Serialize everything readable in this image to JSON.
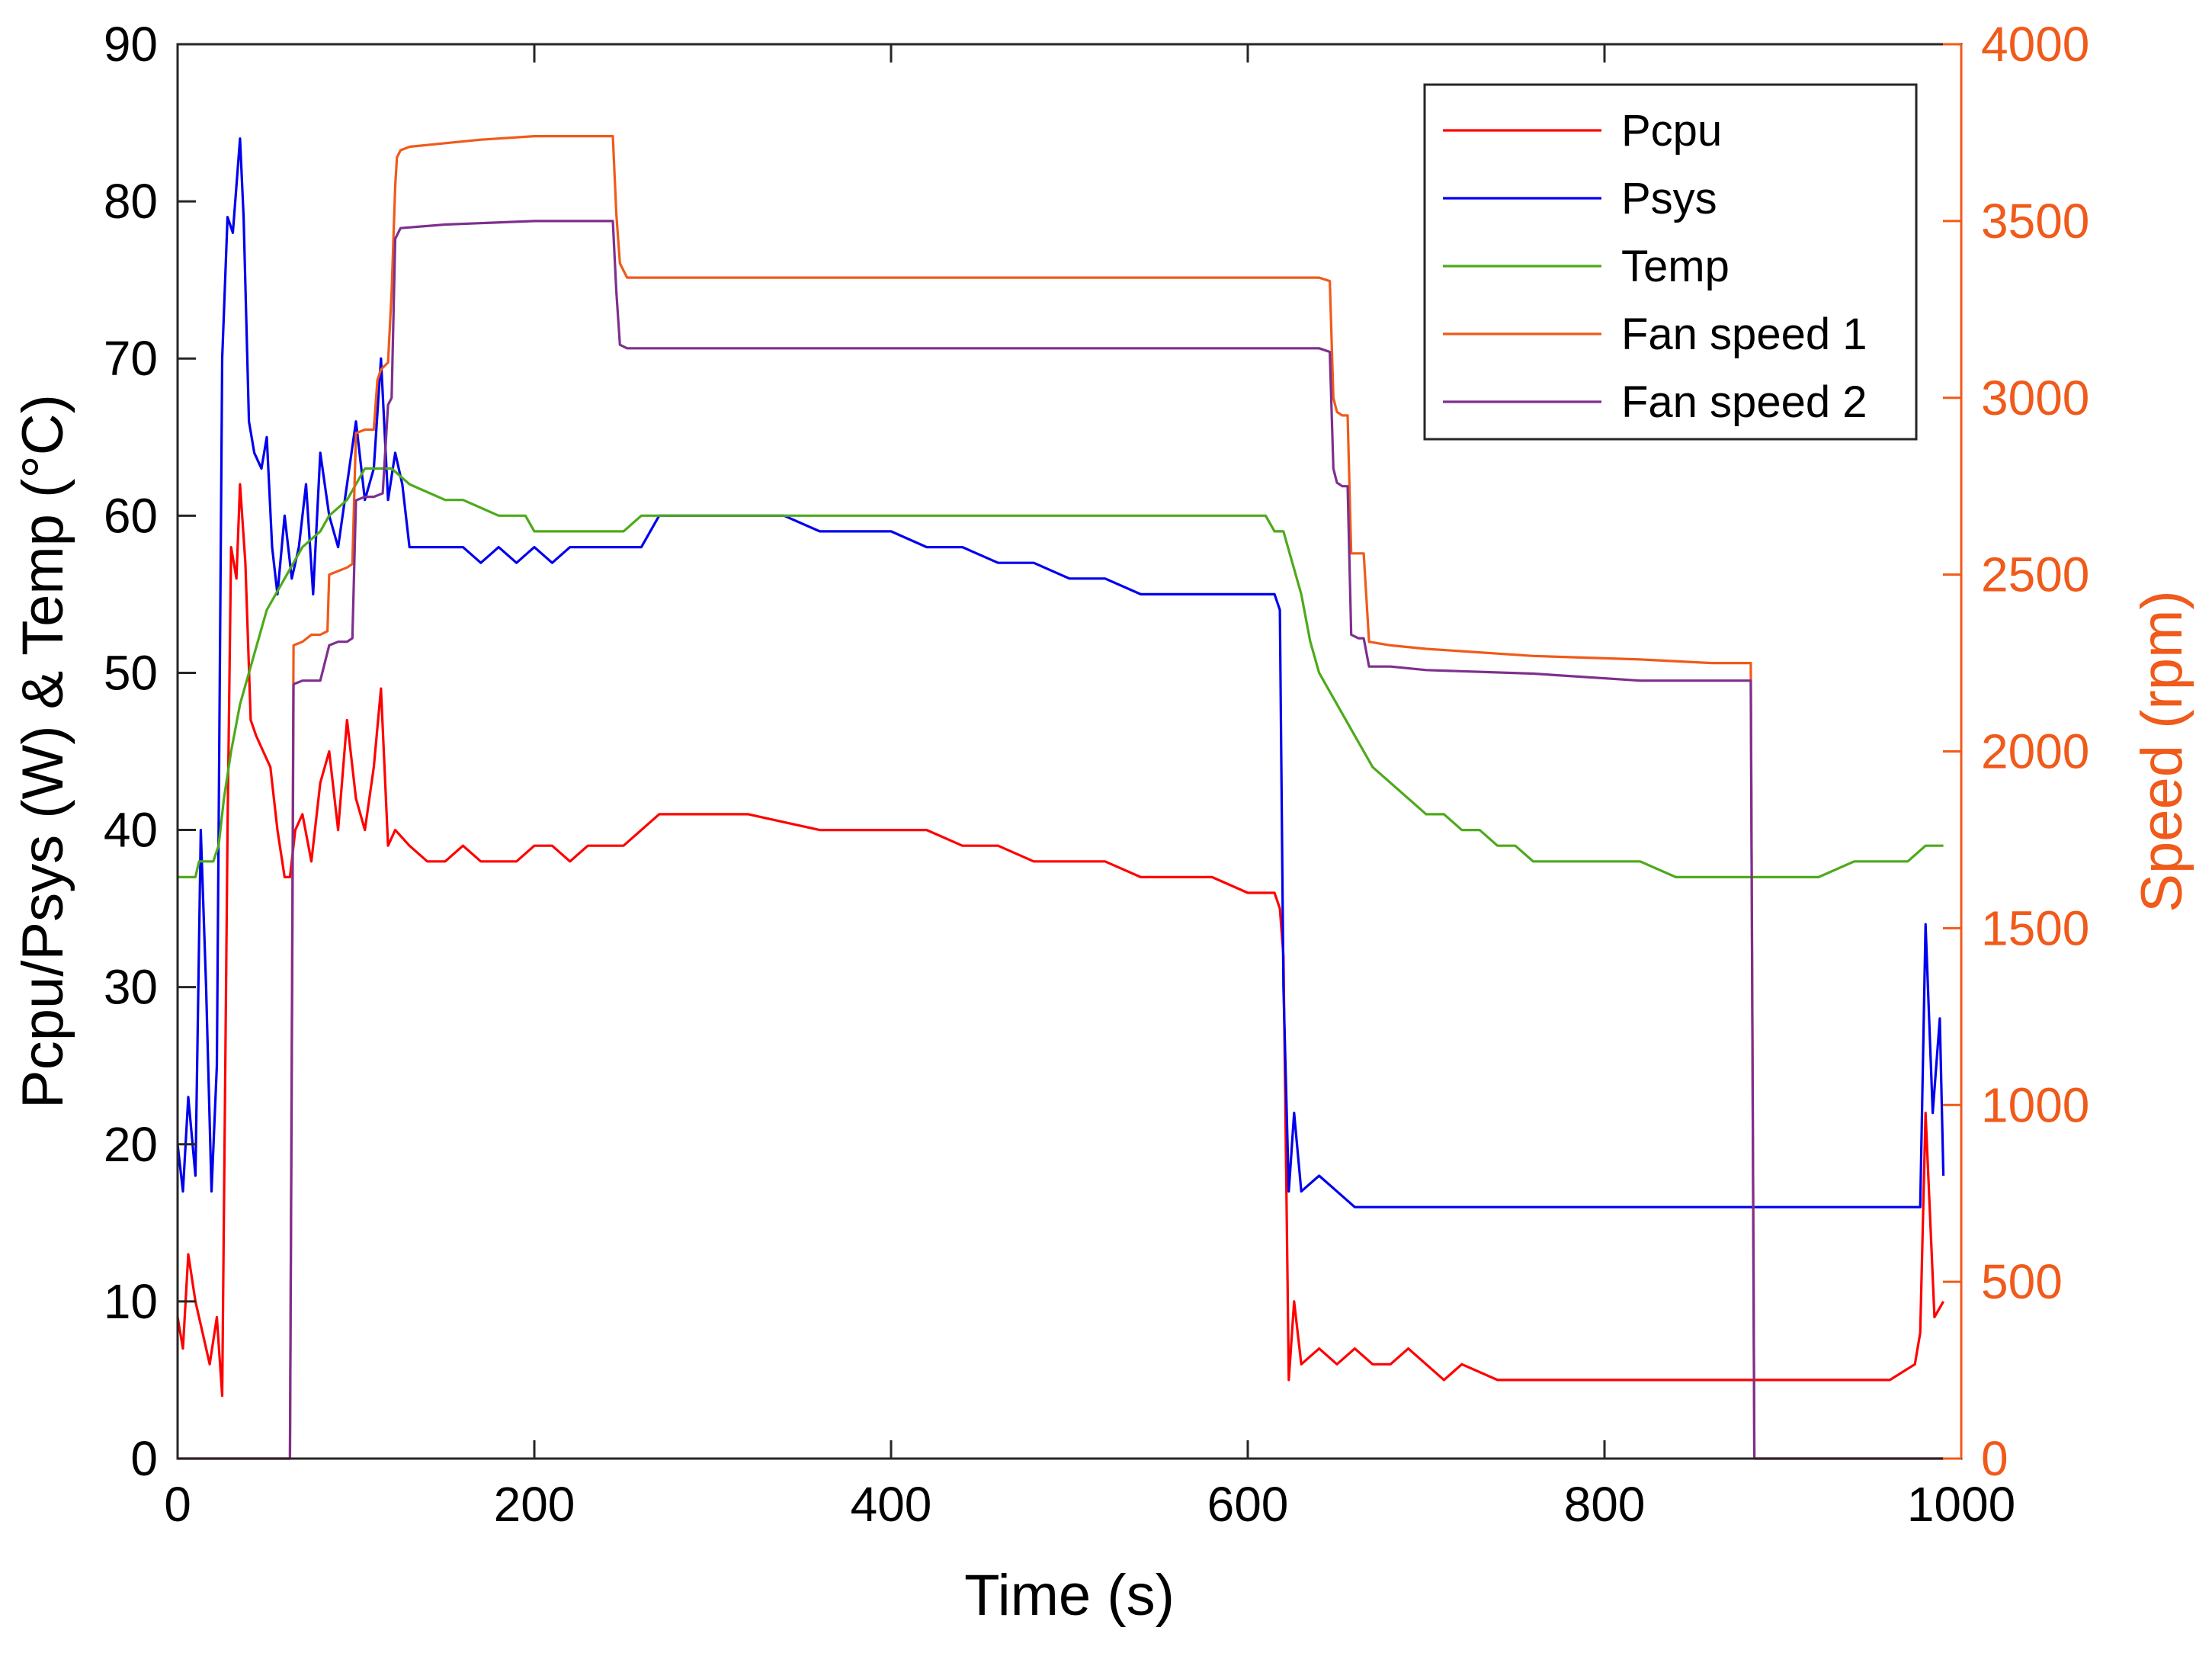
{
  "chart_data": {
    "type": "line",
    "title": "",
    "xlabel": "Time (s)",
    "ylabel_left": "Pcpu/Psys (W) & Temp (°C)",
    "ylabel_right": "Speed (rpm)",
    "xlim": [
      0,
      1000
    ],
    "ylim_left": [
      0,
      90
    ],
    "ylim_right": [
      0,
      4000
    ],
    "x_ticks": [
      "0",
      "200",
      "400",
      "600",
      "800",
      "1000"
    ],
    "y_ticks_left": [
      "0",
      "10",
      "20",
      "30",
      "40",
      "50",
      "60",
      "70",
      "80",
      "90"
    ],
    "y_ticks_right": [
      "0",
      "500",
      "1000",
      "1500",
      "2000",
      "2500",
      "3000",
      "3500",
      "4000"
    ],
    "grid": false,
    "legend_position": "top-right",
    "colors": {
      "pcpu": "#ff0000",
      "psys": "#0000ee",
      "temp": "#4daa1a",
      "fan1": "#f05a1a",
      "fan2": "#7e2f8e",
      "right_axis": "#f05a1a"
    },
    "series": [
      {
        "name": "Pcpu",
        "axis": "left",
        "x": [
          0,
          3,
          6,
          10,
          14,
          18,
          22,
          25,
          28,
          30,
          33,
          35,
          38,
          41,
          44,
          48,
          52,
          56,
          60,
          63,
          66,
          70,
          75,
          80,
          85,
          90,
          95,
          100,
          105,
          110,
          114,
          118,
          122,
          130,
          140,
          150,
          160,
          170,
          180,
          190,
          200,
          210,
          220,
          230,
          240,
          250,
          260,
          270,
          280,
          290,
          300,
          320,
          340,
          360,
          380,
          400,
          420,
          440,
          460,
          480,
          500,
          520,
          540,
          560,
          580,
          600,
          615,
          618,
          620,
          623,
          626,
          630,
          640,
          650,
          660,
          670,
          680,
          690,
          700,
          710,
          720,
          740,
          760,
          780,
          800,
          820,
          840,
          860,
          880,
          900,
          920,
          940,
          960,
          974,
          977,
          980,
          985,
          990
        ],
        "values": [
          9,
          7,
          13,
          10,
          8,
          6,
          9,
          4,
          40,
          58,
          56,
          62,
          57,
          47,
          46,
          45,
          44,
          40,
          37,
          37,
          40,
          41,
          38,
          43,
          45,
          40,
          47,
          42,
          40,
          44,
          49,
          39,
          40,
          39,
          38,
          38,
          39,
          38,
          38,
          38,
          39,
          39,
          38,
          39,
          39,
          39,
          40,
          41,
          41,
          41,
          41,
          41,
          40.5,
          40,
          40,
          40,
          40,
          39,
          39,
          38,
          38,
          38,
          37,
          37,
          37,
          36,
          36,
          35,
          32,
          5,
          10,
          6,
          7,
          6,
          7,
          6,
          6,
          7,
          6,
          5,
          6,
          5,
          5,
          5,
          5,
          5,
          5,
          5,
          5,
          5,
          5,
          5,
          5,
          6,
          8,
          22,
          9,
          10
        ]
      },
      {
        "name": "Psys",
        "axis": "left",
        "x": [
          0,
          3,
          6,
          10,
          13,
          16,
          19,
          22,
          25,
          28,
          31,
          35,
          37,
          40,
          43,
          47,
          50,
          53,
          56,
          60,
          64,
          68,
          72,
          76,
          80,
          85,
          90,
          95,
          100,
          105,
          110,
          114,
          118,
          122,
          126,
          130,
          140,
          150,
          160,
          170,
          180,
          190,
          200,
          210,
          220,
          230,
          240,
          250,
          260,
          270,
          280,
          300,
          320,
          340,
          360,
          380,
          400,
          420,
          440,
          460,
          480,
          500,
          520,
          540,
          560,
          580,
          600,
          615,
          618,
          620,
          623,
          626,
          630,
          640,
          650,
          660,
          680,
          700,
          720,
          740,
          760,
          780,
          800,
          820,
          840,
          860,
          880,
          900,
          920,
          940,
          960,
          974,
          977,
          980,
          984,
          988,
          990
        ],
        "values": [
          20,
          17,
          23,
          18,
          40,
          30,
          17,
          25,
          70,
          79,
          78,
          84,
          79,
          66,
          64,
          63,
          65,
          58,
          55,
          60,
          56,
          58,
          62,
          55,
          64,
          60,
          58,
          62,
          66,
          61,
          63,
          70,
          61,
          64,
          62,
          58,
          58,
          58,
          58,
          57,
          58,
          57,
          58,
          57,
          58,
          58,
          58,
          58,
          58,
          60,
          60,
          60,
          60,
          60,
          59,
          59,
          59,
          58,
          58,
          57,
          57,
          56,
          56,
          55,
          55,
          55,
          55,
          55,
          54,
          30,
          17,
          22,
          17,
          18,
          17,
          16,
          16,
          16,
          16,
          16,
          16,
          16,
          16,
          16,
          16,
          16,
          16,
          16,
          16,
          16,
          16,
          16,
          16,
          34,
          22,
          28,
          18
        ]
      },
      {
        "name": "Temp",
        "axis": "left",
        "x": [
          0,
          10,
          12,
          20,
          23,
          26,
          30,
          35,
          40,
          45,
          50,
          55,
          60,
          70,
          80,
          85,
          95,
          100,
          105,
          120,
          130,
          150,
          160,
          180,
          195,
          200,
          220,
          240,
          250,
          260,
          270,
          300,
          350,
          400,
          450,
          500,
          550,
          600,
          610,
          615,
          620,
          625,
          630,
          635,
          640,
          645,
          650,
          655,
          660,
          665,
          670,
          680,
          690,
          700,
          710,
          720,
          730,
          740,
          750,
          760,
          770,
          780,
          800,
          820,
          840,
          850,
          860,
          880,
          900,
          920,
          940,
          960,
          970,
          980,
          990
        ],
        "values": [
          37,
          37,
          38,
          38,
          39,
          42,
          45,
          48,
          50,
          52,
          54,
          55,
          56,
          58,
          59,
          60,
          61,
          62,
          63,
          63,
          62,
          61,
          61,
          60,
          60,
          59,
          59,
          59,
          59,
          60,
          60,
          60,
          60,
          60,
          60,
          60,
          60,
          60,
          60,
          59,
          59,
          57,
          55,
          52,
          50,
          49,
          48,
          47,
          46,
          45,
          44,
          43,
          42,
          41,
          41,
          40,
          40,
          39,
          39,
          38,
          38,
          38,
          38,
          38,
          37,
          37,
          37,
          37,
          37,
          37,
          38,
          38,
          38,
          39,
          39
        ]
      },
      {
        "name": "Fan speed 1",
        "axis": "right",
        "x": [
          0,
          62,
          63,
          65,
          70,
          75,
          80,
          84,
          85,
          90,
          95,
          98,
          100,
          105,
          110,
          112,
          114,
          118,
          120,
          122,
          123,
          125,
          130,
          150,
          170,
          200,
          230,
          244,
          246,
          248,
          252,
          260,
          300,
          400,
          500,
          600,
          640,
          646,
          648,
          650,
          653,
          656,
          658,
          662,
          665,
          668,
          680,
          700,
          760,
          820,
          860,
          880,
          882,
          884,
          990
        ],
        "values": [
          0,
          0,
          0,
          2300,
          2310,
          2330,
          2330,
          2340,
          2500,
          2510,
          2520,
          2530,
          2900,
          2910,
          2910,
          3050,
          3080,
          3100,
          3300,
          3600,
          3680,
          3700,
          3710,
          3720,
          3730,
          3740,
          3740,
          3740,
          3520,
          3380,
          3340,
          3340,
          3340,
          3340,
          3340,
          3340,
          3340,
          3330,
          3000,
          2960,
          2950,
          2950,
          2560,
          2560,
          2560,
          2310,
          2300,
          2290,
          2270,
          2260,
          2250,
          2250,
          2250,
          0,
          0
        ]
      },
      {
        "name": "Fan speed 2",
        "axis": "right",
        "x": [
          0,
          62,
          63,
          65,
          70,
          80,
          85,
          90,
          95,
          98,
          100,
          105,
          110,
          115,
          118,
          120,
          122,
          125,
          150,
          200,
          230,
          244,
          246,
          248,
          252,
          300,
          400,
          500,
          600,
          640,
          646,
          648,
          650,
          653,
          656,
          658,
          662,
          665,
          668,
          680,
          700,
          760,
          820,
          860,
          880,
          882,
          884,
          990
        ],
        "values": [
          0,
          0,
          0,
          2190,
          2200,
          2200,
          2300,
          2310,
          2310,
          2320,
          2710,
          2720,
          2720,
          2730,
          2980,
          3000,
          3450,
          3480,
          3490,
          3500,
          3500,
          3500,
          3300,
          3150,
          3140,
          3140,
          3140,
          3140,
          3140,
          3140,
          3130,
          2800,
          2760,
          2750,
          2750,
          2330,
          2320,
          2320,
          2240,
          2240,
          2230,
          2220,
          2200,
          2200,
          2200,
          2200,
          0,
          0
        ]
      }
    ]
  }
}
